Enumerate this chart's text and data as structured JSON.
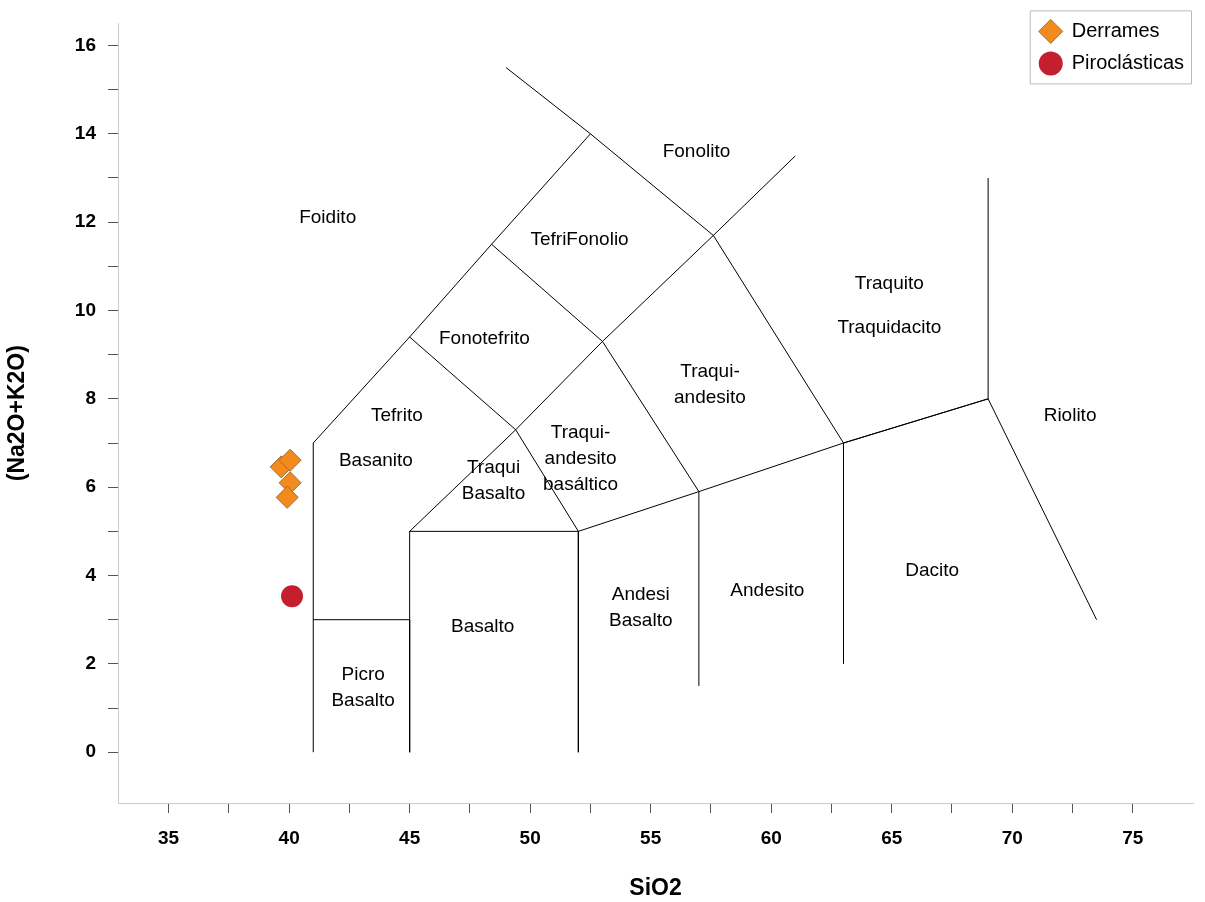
{
  "chart_data": {
    "type": "scatter",
    "xlabel": "SiO2",
    "ylabel": "(Na2O+K2O)",
    "xlim": [
      32.9,
      77.5
    ],
    "ylim": [
      -1.15,
      16.5
    ],
    "xticks": [
      35,
      {
        "value": 37.5,
        "label": null
      },
      40,
      {
        "value": 42.5,
        "label": null
      },
      45,
      {
        "value": 47.5,
        "label": null
      },
      50,
      {
        "value": 52.5,
        "label": null
      },
      55,
      {
        "value": 57.5,
        "label": null
      },
      60,
      {
        "value": 62.5,
        "label": null
      },
      65,
      {
        "value": 67.5,
        "label": null
      },
      70,
      {
        "value": 72.5,
        "label": null
      },
      75
    ],
    "yticks": [
      0,
      {
        "value": 1,
        "label": null
      },
      2,
      {
        "value": 3,
        "label": null
      },
      4,
      {
        "value": 5,
        "label": null
      },
      6,
      {
        "value": 7,
        "label": null
      },
      8,
      {
        "value": 9,
        "label": null
      },
      10,
      {
        "value": 11,
        "label": null
      },
      12,
      {
        "value": 13,
        "label": null
      },
      14,
      {
        "value": 15,
        "label": null
      },
      16
    ],
    "grid": false,
    "legend": "top right",
    "series": [
      {
        "type": "line",
        "color": "#000000",
        "x": [
          41,
          41,
          45,
          48.4,
          52.5,
          57.6,
          63,
          69,
          73.5
        ],
        "values": [
          0,
          7,
          9.4,
          11.5,
          14,
          11.7,
          7,
          8,
          3
        ]
      },
      {
        "type": "line",
        "color": "#000000",
        "x": [
          49,
          52.5
        ],
        "values": [
          15.5,
          14
        ]
      },
      {
        "type": "line",
        "color": "#000000",
        "x": [
          45,
          49.4,
          53,
          57.6,
          61
        ],
        "values": [
          5,
          7.3,
          9.3,
          11.7,
          13.5
        ]
      },
      {
        "type": "line",
        "color": "#000000",
        "x": [
          41,
          45,
          45
        ],
        "values": [
          3,
          3,
          0
        ]
      },
      {
        "type": "line",
        "color": "#000000",
        "x": [
          45,
          45,
          52,
          52
        ],
        "values": [
          3,
          5,
          5,
          0
        ]
      },
      {
        "type": "line",
        "color": "#000000",
        "x": [
          52,
          57,
          63,
          69,
          69
        ],
        "values": [
          5,
          5.9,
          7,
          8,
          13
        ]
      },
      {
        "type": "line",
        "color": "#000000",
        "x": [
          57,
          57,
          53,
          48.4
        ],
        "values": [
          1.5,
          5.9,
          9.3,
          11.5
        ]
      },
      {
        "type": "line",
        "color": "#000000",
        "x": [
          63,
          63
        ],
        "values": [
          2,
          7
        ]
      },
      {
        "type": "line",
        "color": "#000000",
        "x": [
          45,
          49.4,
          52
        ],
        "values": [
          9.4,
          7.3,
          5
        ]
      },
      {
        "name": "Derrames",
        "marker": "diamond",
        "color": "#f28a1e",
        "x": [
          39.67,
          40.04,
          40.04,
          39.92
        ],
        "values": [
          6.46,
          6.61,
          6.1,
          5.77
        ]
      },
      {
        "name": "Piroclásticas",
        "marker": "circle",
        "color": "#c41e2f",
        "x": [
          40.12
        ],
        "values": [
          3.53
        ]
      }
    ],
    "annotations": [
      "Foidito",
      "Fonolito",
      "TefriFonolio",
      "Traquito",
      "Traquidacito",
      "Fonotefrito",
      "Traqui-\nandesito",
      "Riolito",
      "Tefrito",
      "Traqui-\nandesito\nbasáltico",
      "Basanito",
      "Traqui\nBasalto",
      "Dacito",
      "Andesito",
      "Andesi\nBasalto",
      "Basalto",
      "Picro\nBasalto"
    ]
  }
}
